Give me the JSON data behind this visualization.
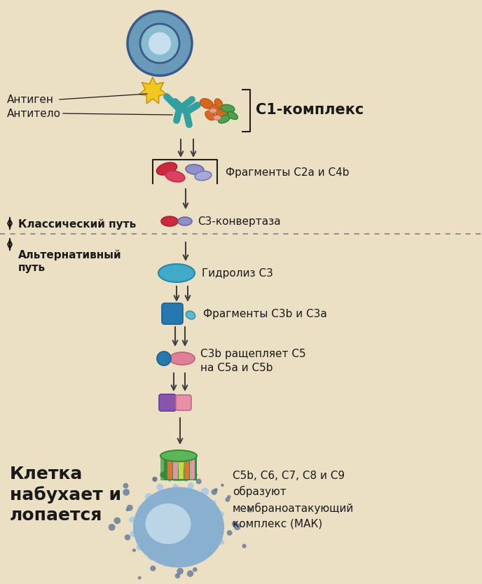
{
  "bg_color": "#ece0c4",
  "fig_width": 6.88,
  "fig_height": 8.34,
  "labels": {
    "antigen": "Антиген",
    "antibody": "Антитело",
    "c1_complex": "С1-комплекс",
    "fragments_c2a_c4b": "Фрагменты С2а и С4b",
    "classical_path": "Классический путь",
    "c3_convertase": "С3-конвертаза",
    "alternative_path": "Альтернативный\nпуть",
    "c3_hydrolysis": "Гидролиз С3",
    "fragments_c3b_c3a": "Фрагменты С3b и С3а",
    "c3b_cleaves": "С3b ращепляет С5\nна С5а и С5b",
    "cell_swells": "Клетка\nнабухает и\nлопается",
    "mac_text": "С5b, С6, С7, С8 и С9\nобразуют\nмембраноатакующий\nкомплекс (МАК)"
  },
  "colors": {
    "cell_outer_ring": "#3a5a8a",
    "cell_outer_fill": "#6a9aba",
    "cell_inner_ring": "#3a5a8a",
    "cell_inner_fill": "#8abcd0",
    "antigen_yellow": "#f0c820",
    "antigen_edge": "#c09000",
    "antibody_teal": "#30a0a0",
    "antibody_edge": "#208080",
    "c1_orange1": "#d86820",
    "c1_orange2": "#c05818",
    "c1_green": "#50a050",
    "c1_green_edge": "#308030",
    "c1_salmon": "#e8a080",
    "fragment_red": "#cc2840",
    "fragment_red2": "#dd4060",
    "fragment_lavender": "#9090c8",
    "fragment_lavender2": "#a8a8d8",
    "c3conv_red": "#cc2840",
    "c3conv_lavender": "#9090c8",
    "c3_oval_blue": "#40aac8",
    "c3b_blue": "#2878b0",
    "c3a_lightblue": "#60b8d0",
    "c5conv_pink": "#e08098",
    "c5conv_blue": "#2878b0",
    "c5a_purple": "#8855aa",
    "c5b_pink": "#e890a8",
    "mac_green_dark": "#3a8a3a",
    "mac_green_light": "#5ab85a",
    "mac_orange": "#e87030",
    "mac_pink": "#e890b0",
    "mac_yellow": "#d0c040",
    "burst_cell_base": "#8ab0d0",
    "burst_cell_light": "#b0cce0",
    "burst_cell_highlight": "#ddeef8",
    "burst_spike": "#7aa0c0",
    "burst_dot": "#607898",
    "dotted_line": "#888888",
    "arrow": "#404040",
    "text_dark": "#1a1a1a",
    "bracket_line": "#202020"
  }
}
